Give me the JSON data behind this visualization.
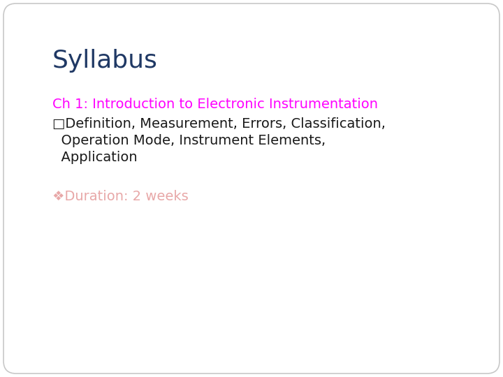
{
  "background_color": "#ffffff",
  "border_color": "#c8c8c8",
  "title": "Syllabus",
  "title_color": "#1f3864",
  "title_fontsize": 26,
  "title_bold": false,
  "ch_heading": "Ch 1: Introduction to Electronic Instrumentation",
  "ch_heading_color": "#ff00ff",
  "ch_heading_fontsize": 14,
  "bullet_line1": "□Definition, Measurement, Errors, Classification,",
  "bullet_line2": "  Operation Mode, Instrument Elements,",
  "bullet_line3": "  Application",
  "bullet_color": "#1a1a1a",
  "bullet_fontsize": 14,
  "duration_text": "❖Duration: 2 weeks",
  "duration_color": "#e8a8a8",
  "duration_fontsize": 14,
  "font_family": "DejaVu Sans"
}
